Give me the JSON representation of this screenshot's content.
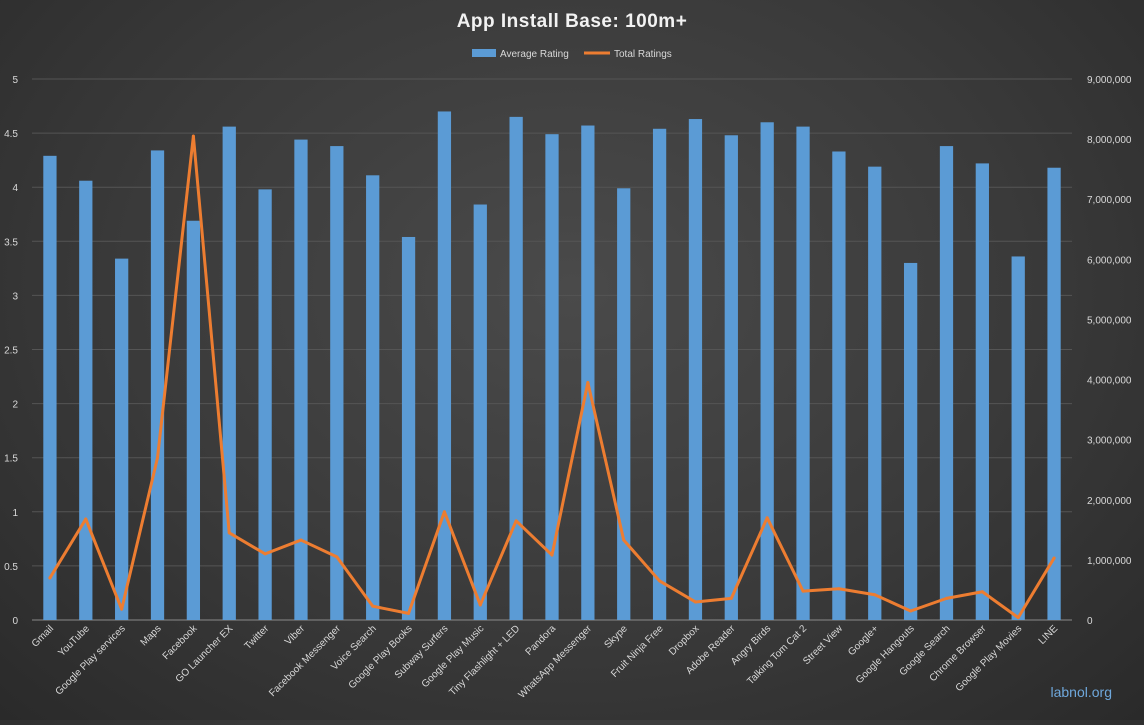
{
  "chart_data": {
    "type": "bar",
    "title": "App Install Base: 100m+",
    "categories": [
      "Gmail",
      "YouTube",
      "Google Play services",
      "Maps",
      "Facebook",
      "GO Launcher EX",
      "Twitter",
      "Viber",
      "Facebook Messenger",
      "Voice Search",
      "Google Play Books",
      "Subway Surfers",
      "Google Play Music",
      "Tiny Flashlight + LED",
      "Pandora",
      "WhatsApp Messenger",
      "Skype",
      "Fruit Ninja Free",
      "Dropbox",
      "Adobe Reader",
      "Angry Birds",
      "Talking Tom Cat 2",
      "Street View",
      "Google+",
      "Google Hangouts",
      "Google Search",
      "Chrome Browser",
      "Google Play Movies",
      "LINE"
    ],
    "series": [
      {
        "name": "Average Rating",
        "type": "bar",
        "axis": "left",
        "color": "#5b9bd5",
        "values": [
          4.29,
          4.06,
          3.34,
          4.34,
          3.69,
          4.56,
          3.98,
          4.44,
          4.38,
          4.11,
          3.54,
          4.7,
          3.84,
          4.65,
          4.49,
          4.57,
          3.99,
          4.54,
          4.63,
          4.48,
          4.6,
          4.56,
          4.33,
          4.19,
          3.3,
          4.38,
          4.22,
          3.36,
          4.18
        ]
      },
      {
        "name": "Total Ratings",
        "type": "line",
        "axis": "right",
        "color": "#ed7d31",
        "values": [
          700000,
          1680000,
          180000,
          2700000,
          8050000,
          1450000,
          1100000,
          1330000,
          1050000,
          230000,
          110000,
          1800000,
          250000,
          1650000,
          1080000,
          3950000,
          1330000,
          650000,
          300000,
          360000,
          1700000,
          480000,
          520000,
          420000,
          150000,
          360000,
          470000,
          40000,
          1030000
        ]
      }
    ],
    "y_left": {
      "min": 0,
      "max": 5,
      "ticks": [
        "0",
        "0.5",
        "1",
        "1.5",
        "2",
        "2.5",
        "3",
        "3.5",
        "4",
        "4.5",
        "5"
      ]
    },
    "y_right": {
      "min": 0,
      "max": 9000000,
      "ticks": [
        "0",
        "1,000,000",
        "2,000,000",
        "3,000,000",
        "4,000,000",
        "5,000,000",
        "6,000,000",
        "7,000,000",
        "8,000,000",
        "9,000,000"
      ]
    },
    "grid": true,
    "legend_position": "top-center"
  },
  "watermark": "labnol.org"
}
